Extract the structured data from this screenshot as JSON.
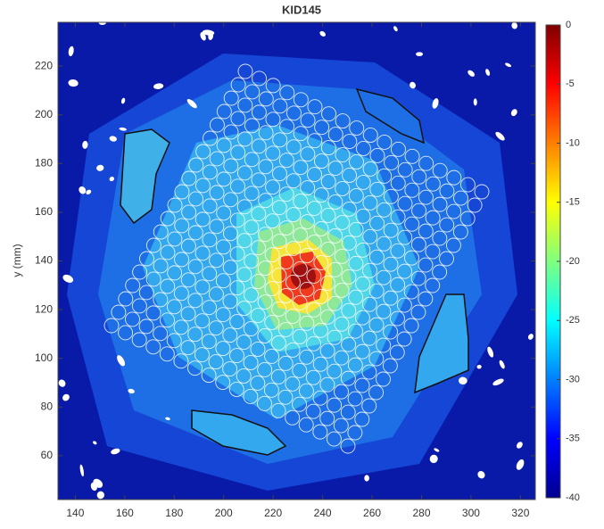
{
  "chart_data": {
    "type": "heatmap",
    "title": "KID145",
    "ylabel": "y (mm)",
    "xlim": [
      133,
      326
    ],
    "xticks": [
      140,
      160,
      180,
      200,
      220,
      240,
      260,
      280,
      300,
      320
    ],
    "ylim": [
      42,
      238
    ],
    "yticks": [
      60,
      80,
      100,
      120,
      140,
      160,
      180,
      200,
      220
    ],
    "clim": [
      -40,
      0
    ],
    "cticks": [
      0,
      -5,
      -10,
      -15,
      -20,
      -25,
      -30,
      -35,
      -40
    ],
    "colormap": "jet"
  }
}
